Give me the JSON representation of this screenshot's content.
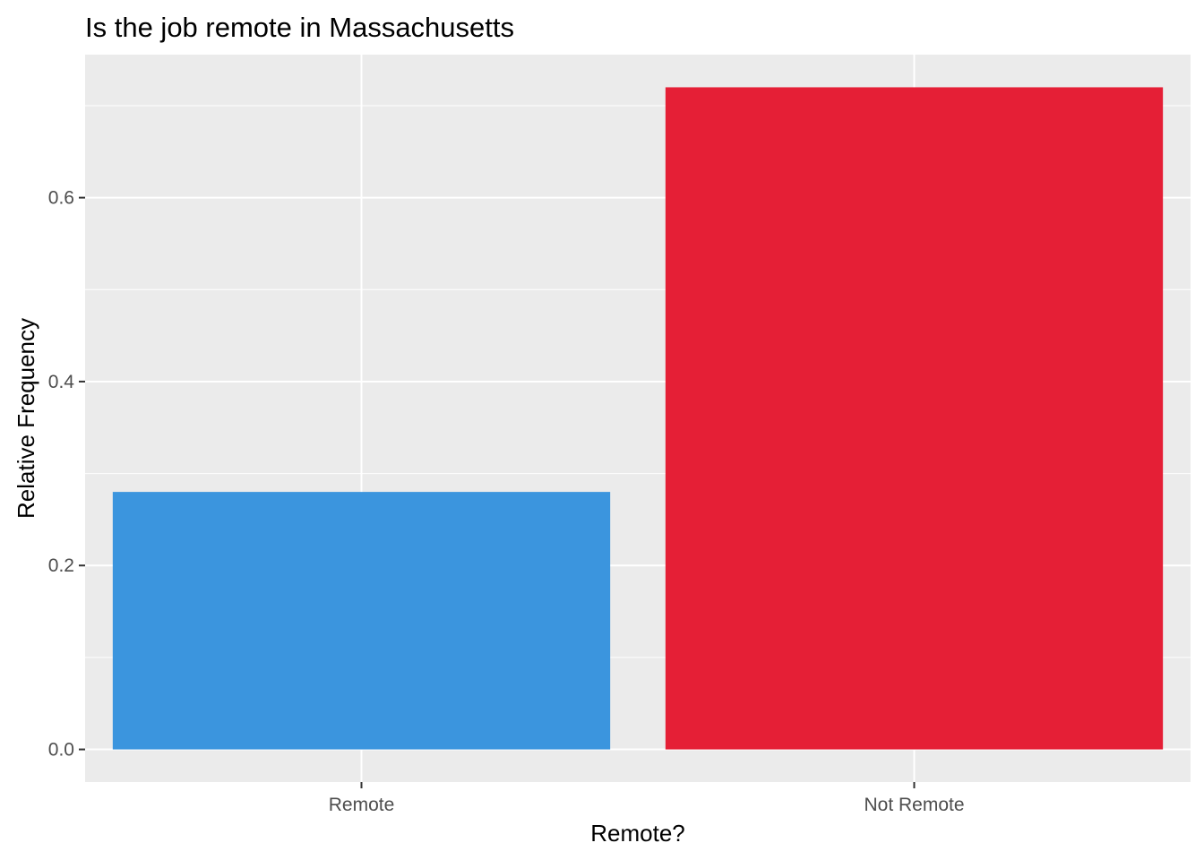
{
  "chart_data": {
    "type": "bar",
    "title": "Is the job remote in Massachusetts",
    "xlabel": "Remote?",
    "ylabel": "Relative Frequency",
    "categories": [
      "Remote",
      "Not Remote"
    ],
    "values": [
      0.28,
      0.72
    ],
    "bar_colors": [
      "#3B95DE",
      "#E51F36"
    ],
    "ylim": [
      -0.0355,
      0.7555
    ],
    "yticks": [
      0.0,
      0.2,
      0.4,
      0.6
    ],
    "ytick_labels": [
      "0.0",
      "0.2",
      "0.4",
      "0.6"
    ],
    "grid": true,
    "panel_background": "#EBEBEB",
    "grid_color": "#FFFFFF",
    "legend": "none"
  }
}
